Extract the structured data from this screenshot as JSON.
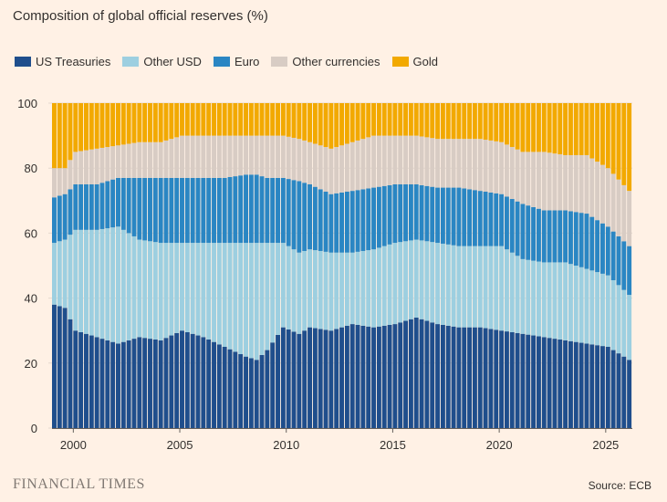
{
  "colors": {
    "background": "#FFF1E5",
    "us_treasuries": "#1F4E8C",
    "other_usd": "#9DCFE0",
    "euro": "#2A86C3",
    "other_currencies": "#D8CCC4",
    "gold": "#F2A900"
  },
  "footer": {
    "brand": "FINANCIAL TIMES",
    "source": "Source: ECB"
  },
  "chart_data": {
    "type": "bar",
    "stacked": true,
    "title": "Composition of global official reserves (%)",
    "legend_position": "top-left",
    "ylim": [
      0,
      100
    ],
    "yticks": [
      0,
      20,
      40,
      60,
      80,
      100
    ],
    "xlim": [
      1999,
      2026.25
    ],
    "xticks": [
      "2000",
      "2005",
      "2010",
      "2015",
      "2020",
      "2025"
    ],
    "grid": "horizontal",
    "series_names": [
      "US Treasuries",
      "Other USD",
      "Euro",
      "Other currencies",
      "Gold"
    ],
    "anchors": [
      {
        "t": 1999.0,
        "values": [
          38,
          19,
          14,
          9,
          20
        ]
      },
      {
        "t": 1999.5,
        "values": [
          37,
          21,
          14,
          8,
          20
        ]
      },
      {
        "t": 2000.0,
        "values": [
          30,
          31,
          14,
          10,
          15
        ]
      },
      {
        "t": 2001.0,
        "values": [
          28,
          33,
          14,
          11,
          14
        ]
      },
      {
        "t": 2002.0,
        "values": [
          26,
          36,
          15,
          10,
          13
        ]
      },
      {
        "t": 2003.0,
        "values": [
          28,
          30,
          19,
          11,
          12
        ]
      },
      {
        "t": 2004.0,
        "values": [
          27,
          30,
          20,
          11,
          12
        ]
      },
      {
        "t": 2005.0,
        "values": [
          30,
          27,
          20,
          13,
          10
        ]
      },
      {
        "t": 2006.0,
        "values": [
          28,
          29,
          20,
          13,
          10
        ]
      },
      {
        "t": 2007.0,
        "values": [
          25,
          32,
          20,
          13,
          10
        ]
      },
      {
        "t": 2008.0,
        "values": [
          22,
          35,
          21,
          12,
          10
        ]
      },
      {
        "t": 2008.5,
        "values": [
          21,
          36,
          21,
          12,
          10
        ]
      },
      {
        "t": 2009.0,
        "values": [
          24,
          33,
          20,
          13,
          10
        ]
      },
      {
        "t": 2009.75,
        "values": [
          31,
          26,
          20,
          13,
          10
        ]
      },
      {
        "t": 2010.5,
        "values": [
          29,
          25,
          22,
          13,
          11
        ]
      },
      {
        "t": 2011.0,
        "values": [
          31,
          24,
          20,
          13,
          12
        ]
      },
      {
        "t": 2012.0,
        "values": [
          30,
          24,
          18,
          14,
          14
        ]
      },
      {
        "t": 2013.0,
        "values": [
          32,
          22,
          19,
          15,
          12
        ]
      },
      {
        "t": 2014.0,
        "values": [
          31,
          24,
          19,
          16,
          10
        ]
      },
      {
        "t": 2015.0,
        "values": [
          32,
          25,
          18,
          15,
          10
        ]
      },
      {
        "t": 2016.0,
        "values": [
          34,
          24,
          17,
          15,
          10
        ]
      },
      {
        "t": 2017.0,
        "values": [
          32,
          25,
          17,
          15,
          11
        ]
      },
      {
        "t": 2018.0,
        "values": [
          31,
          25,
          18,
          15,
          11
        ]
      },
      {
        "t": 2019.0,
        "values": [
          31,
          25,
          17,
          16,
          11
        ]
      },
      {
        "t": 2020.0,
        "values": [
          30,
          26,
          16,
          16,
          12
        ]
      },
      {
        "t": 2021.0,
        "values": [
          29,
          23,
          17,
          16,
          15
        ]
      },
      {
        "t": 2022.0,
        "values": [
          28,
          23,
          16,
          18,
          15
        ]
      },
      {
        "t": 2023.0,
        "values": [
          27,
          24,
          16,
          17,
          16
        ]
      },
      {
        "t": 2024.0,
        "values": [
          26,
          23,
          17,
          18,
          16
        ]
      },
      {
        "t": 2025.0,
        "values": [
          25,
          22,
          15,
          18,
          20
        ]
      },
      {
        "t": 2026.0,
        "values": [
          21,
          20,
          15,
          17,
          27
        ]
      }
    ]
  }
}
